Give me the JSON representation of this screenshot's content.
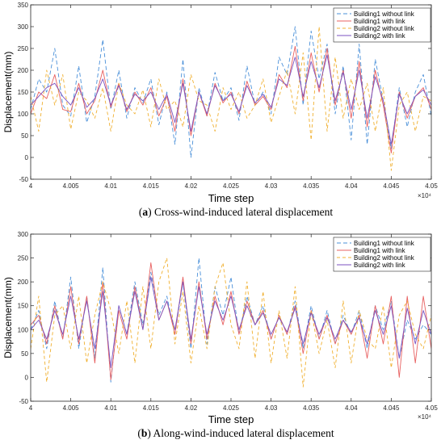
{
  "chart_data": [
    {
      "type": "line",
      "caption_prefix": "(a)",
      "caption_letter": "a",
      "caption_text": " Cross-wind-induced lateral displacement",
      "xlabel": "Time step",
      "ylabel": "Displacement(mm)",
      "x_exponent": "×10⁴",
      "xlim": [
        40000,
        40500
      ],
      "ylim": [
        -50,
        350
      ],
      "xticks": [
        4,
        4.005,
        4.01,
        4.015,
        4.02,
        4.025,
        4.03,
        4.035,
        4.04,
        4.045,
        4.05
      ],
      "xtick_labels": [
        "4",
        "4.005",
        "4.01",
        "4.015",
        "4.02",
        "4.025",
        "4.03",
        "4.035",
        "4.04",
        "4.045",
        "4.05"
      ],
      "yticks": [
        -50,
        0,
        50,
        100,
        150,
        200,
        250,
        300,
        350
      ],
      "ytick_labels": [
        "-50",
        "0",
        "50",
        "100",
        "150",
        "200",
        "250",
        "300",
        "350"
      ],
      "grid": false,
      "legend_position": "top-right",
      "series": [
        {
          "name": "Building1 without link",
          "color": "#4a90d9",
          "dash": "5,3",
          "x": [
            40000,
            40010,
            40020,
            40030,
            40040,
            40050,
            40060,
            40070,
            40080,
            40090,
            40100,
            40110,
            40120,
            40130,
            40140,
            40150,
            40160,
            40170,
            40180,
            40190,
            40200,
            40210,
            40220,
            40230,
            40240,
            40250,
            40260,
            40270,
            40280,
            40290,
            40300,
            40310,
            40320,
            40330,
            40340,
            40350,
            40360,
            40370,
            40380,
            40390,
            40400,
            40410,
            40420,
            40430,
            40440,
            40450,
            40460,
            40470,
            40480,
            40490,
            40500
          ],
          "values": [
            110,
            180,
            150,
            250,
            120,
            95,
            210,
            80,
            140,
            270,
            110,
            200,
            90,
            160,
            125,
            180,
            75,
            150,
            30,
            225,
            0,
            160,
            95,
            195,
            130,
            160,
            85,
            210,
            120,
            150,
            100,
            230,
            190,
            300,
            120,
            290,
            180,
            260,
            100,
            210,
            40,
            260,
            30,
            225,
            130,
            20,
            160,
            70,
            150,
            190,
            95
          ]
        },
        {
          "name": "Building1 with link",
          "color": "#e86060",
          "dash": "",
          "x": [
            40000,
            40010,
            40020,
            40030,
            40040,
            40050,
            40060,
            40070,
            40080,
            40090,
            40100,
            40110,
            40120,
            40130,
            40140,
            40150,
            40160,
            40170,
            40180,
            40190,
            40200,
            40210,
            40220,
            40230,
            40240,
            40250,
            40260,
            40270,
            40280,
            40290,
            40300,
            40310,
            40320,
            40330,
            40340,
            40350,
            40360,
            40370,
            40380,
            40390,
            40400,
            40410,
            40420,
            40430,
            40440,
            40450,
            40460,
            40470,
            40480,
            40490,
            40500
          ],
          "values": [
            100,
            150,
            135,
            190,
            110,
            105,
            170,
            100,
            130,
            200,
            115,
            170,
            105,
            150,
            120,
            160,
            95,
            140,
            60,
            180,
            50,
            150,
            95,
            170,
            125,
            150,
            100,
            175,
            120,
            140,
            110,
            190,
            160,
            255,
            130,
            240,
            150,
            250,
            120,
            200,
            90,
            220,
            70,
            200,
            120,
            10,
            150,
            90,
            140,
            160,
            110
          ]
        },
        {
          "name": "Building2 without link",
          "color": "#f0b030",
          "dash": "4,3",
          "x": [
            40000,
            40010,
            40020,
            40030,
            40040,
            40050,
            40060,
            40070,
            40080,
            40090,
            40100,
            40110,
            40120,
            40130,
            40140,
            40150,
            40160,
            40170,
            40180,
            40190,
            40200,
            40210,
            40220,
            40230,
            40240,
            40250,
            40260,
            40270,
            40280,
            40290,
            40300,
            40310,
            40320,
            40330,
            40340,
            40350,
            40360,
            40370,
            40380,
            40390,
            40400,
            40410,
            40420,
            40430,
            40440,
            40450,
            40460,
            40470,
            40480,
            40490,
            40500
          ],
          "values": [
            140,
            60,
            200,
            120,
            190,
            65,
            150,
            130,
            90,
            160,
            60,
            170,
            120,
            100,
            155,
            70,
            180,
            110,
            130,
            70,
            190,
            130,
            120,
            60,
            160,
            110,
            150,
            90,
            120,
            180,
            80,
            140,
            200,
            100,
            240,
            40,
            300,
            60,
            230,
            90,
            180,
            110,
            170,
            60,
            160,
            -30,
            120,
            150,
            60,
            140,
            130
          ]
        },
        {
          "name": "Building2 with link",
          "color": "#7b52c0",
          "dash": "",
          "x": [
            40000,
            40010,
            40020,
            40030,
            40040,
            40050,
            40060,
            40070,
            40080,
            40090,
            40100,
            40110,
            40120,
            40130,
            40140,
            40150,
            40160,
            40170,
            40180,
            40190,
            40200,
            40210,
            40220,
            40230,
            40240,
            40250,
            40260,
            40270,
            40280,
            40290,
            40300,
            40310,
            40320,
            40330,
            40340,
            40350,
            40360,
            40370,
            40380,
            40390,
            40400,
            40410,
            40420,
            40430,
            40440,
            40450,
            40460,
            40470,
            40480,
            40490,
            40500
          ],
          "values": [
            120,
            140,
            160,
            170,
            140,
            120,
            160,
            115,
            135,
            180,
            120,
            165,
            110,
            145,
            130,
            150,
            110,
            145,
            80,
            170,
            60,
            150,
            100,
            165,
            130,
            145,
            105,
            165,
            125,
            145,
            115,
            180,
            165,
            230,
            140,
            220,
            160,
            235,
            130,
            195,
            110,
            200,
            90,
            185,
            130,
            30,
            145,
            100,
            140,
            155,
            120
          ]
        }
      ]
    },
    {
      "type": "line",
      "caption_prefix": "(b)",
      "caption_letter": "b",
      "caption_text": " Along-wind-induced lateral displacement",
      "xlabel": "Time step",
      "ylabel": "Displacement(mm)",
      "x_exponent": "×10⁴",
      "xlim": [
        40000,
        40500
      ],
      "ylim": [
        -50,
        300
      ],
      "xticks": [
        4,
        4.005,
        4.01,
        4.015,
        4.02,
        4.025,
        4.03,
        4.035,
        4.04,
        4.045,
        4.05
      ],
      "xtick_labels": [
        "4",
        "4.005",
        "4.01",
        "4.015",
        "4.02",
        "4.025",
        "4.03",
        "4.035",
        "4.04",
        "4.045",
        "4.05"
      ],
      "yticks": [
        -50,
        0,
        50,
        100,
        150,
        200,
        250,
        300
      ],
      "ytick_labels": [
        "-50",
        "0",
        "50",
        "100",
        "150",
        "200",
        "250",
        "300"
      ],
      "grid": false,
      "legend_position": "top-right",
      "series": [
        {
          "name": "Building1 without link",
          "color": "#4a90d9",
          "dash": "5,3",
          "x": [
            40000,
            40010,
            40020,
            40030,
            40040,
            40050,
            40060,
            40070,
            40080,
            40090,
            40100,
            40110,
            40120,
            40130,
            40140,
            40150,
            40160,
            40170,
            40180,
            40190,
            40200,
            40210,
            40220,
            40230,
            40240,
            40250,
            40260,
            40270,
            40280,
            40290,
            40300,
            40310,
            40320,
            40330,
            40340,
            40350,
            40360,
            40370,
            40380,
            40390,
            40400,
            40410,
            40420,
            40430,
            40440,
            40450,
            40460,
            40470,
            40480,
            40490,
            40500
          ],
          "values": [
            100,
            140,
            60,
            160,
            80,
            210,
            60,
            170,
            40,
            230,
            -10,
            150,
            90,
            200,
            110,
            220,
            130,
            170,
            90,
            200,
            60,
            250,
            70,
            190,
            130,
            210,
            90,
            170,
            110,
            150,
            80,
            130,
            90,
            160,
            60,
            150,
            80,
            140,
            70,
            130,
            90,
            140,
            60,
            150,
            100,
            160,
            40,
            120,
            80,
            110,
            90
          ]
        },
        {
          "name": "Building1 with link",
          "color": "#e86060",
          "dash": "",
          "x": [
            40000,
            40010,
            40020,
            40030,
            40040,
            40050,
            40060,
            40070,
            40080,
            40090,
            40100,
            40110,
            40120,
            40130,
            40140,
            40150,
            40160,
            40170,
            40180,
            40190,
            40200,
            40210,
            40220,
            40230,
            40240,
            40250,
            40260,
            40270,
            40280,
            40290,
            40300,
            40310,
            40320,
            40330,
            40340,
            40350,
            40360,
            40370,
            40380,
            40390,
            40400,
            40410,
            40420,
            40430,
            40440,
            40450,
            40460,
            40470,
            40480,
            40490,
            40500
          ],
          "values": [
            110,
            130,
            70,
            150,
            80,
            190,
            70,
            170,
            30,
            200,
            -5,
            140,
            80,
            190,
            100,
            240,
            120,
            160,
            90,
            210,
            70,
            200,
            80,
            170,
            110,
            180,
            90,
            160,
            110,
            140,
            80,
            130,
            90,
            150,
            50,
            140,
            80,
            130,
            70,
            120,
            90,
            130,
            40,
            150,
            70,
            170,
            0,
            170,
            30,
            170,
            60
          ]
        },
        {
          "name": "Building2 without link",
          "color": "#f0b030",
          "dash": "4,3",
          "x": [
            40000,
            40010,
            40020,
            40030,
            40040,
            40050,
            40060,
            40070,
            40080,
            40090,
            40100,
            40110,
            40120,
            40130,
            40140,
            40150,
            40160,
            40170,
            40180,
            40190,
            40200,
            40210,
            40220,
            40230,
            40240,
            40250,
            40260,
            40270,
            40280,
            40290,
            40300,
            40310,
            40320,
            40330,
            40340,
            40350,
            40360,
            40370,
            40380,
            40390,
            40400,
            40410,
            40420,
            40430,
            40440,
            40450,
            40460,
            40470,
            40480,
            40490,
            40500
          ],
          "values": [
            60,
            170,
            -10,
            130,
            150,
            60,
            170,
            30,
            130,
            200,
            140,
            50,
            160,
            30,
            190,
            60,
            200,
            250,
            70,
            180,
            30,
            150,
            60,
            190,
            240,
            110,
            60,
            200,
            40,
            180,
            30,
            140,
            40,
            190,
            -20,
            140,
            50,
            120,
            20,
            160,
            30,
            140,
            80,
            60,
            150,
            20,
            130,
            160,
            90,
            60,
            130
          ]
        },
        {
          "name": "Building2 with link",
          "color": "#7b52c0",
          "dash": "",
          "x": [
            40000,
            40010,
            40020,
            40030,
            40040,
            40050,
            40060,
            40070,
            40080,
            40090,
            40100,
            40110,
            40120,
            40130,
            40140,
            40150,
            40160,
            40170,
            40180,
            40190,
            40200,
            40210,
            40220,
            40230,
            40240,
            40250,
            40260,
            40270,
            40280,
            40290,
            40300,
            40310,
            40320,
            40330,
            40340,
            40350,
            40360,
            40370,
            40380,
            40390,
            40400,
            40410,
            40420,
            40430,
            40440,
            40450,
            40460,
            40470,
            40480,
            40490,
            40500
          ],
          "values": [
            100,
            120,
            80,
            140,
            90,
            170,
            80,
            160,
            60,
            180,
            20,
            150,
            90,
            180,
            100,
            210,
            120,
            160,
            100,
            200,
            80,
            190,
            90,
            160,
            120,
            170,
            100,
            150,
            110,
            135,
            90,
            125,
            95,
            145,
            70,
            135,
            90,
            125,
            80,
            120,
            95,
            125,
            70,
            140,
            90,
            150,
            40,
            145,
            70,
            140,
            90
          ]
        }
      ]
    }
  ]
}
